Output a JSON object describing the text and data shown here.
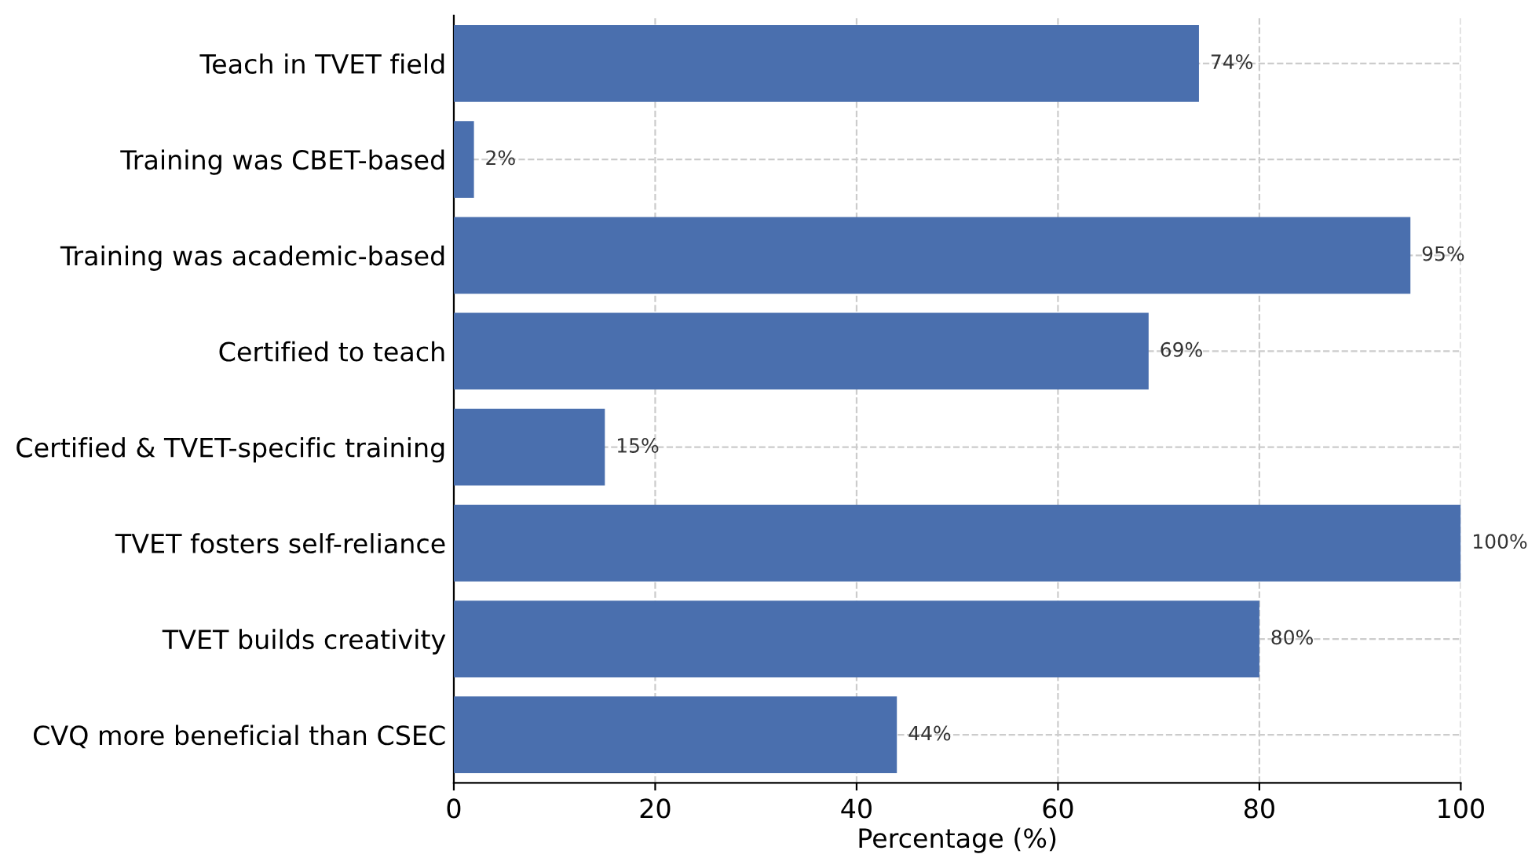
{
  "chart_data": {
    "type": "bar",
    "orientation": "horizontal",
    "xlabel": "Percentage (%)",
    "categories": [
      "Teach in TVET field",
      "Training was CBET-based",
      "Training was academic-based",
      "Certified to teach",
      "Certified & TVET-specific training",
      "TVET fosters self-reliance",
      "TVET builds creativity",
      "CVQ more beneficial than CSEC"
    ],
    "values": [
      74,
      2,
      95,
      69,
      15,
      100,
      80,
      44
    ],
    "value_labels": [
      "74%",
      "2%",
      "95%",
      "69%",
      "15%",
      "100%",
      "80%",
      "44%"
    ],
    "color": "#4a6fae",
    "xlim": [
      0,
      100
    ],
    "xticks": [
      0,
      20,
      40,
      60,
      80,
      100
    ],
    "grid": true
  }
}
